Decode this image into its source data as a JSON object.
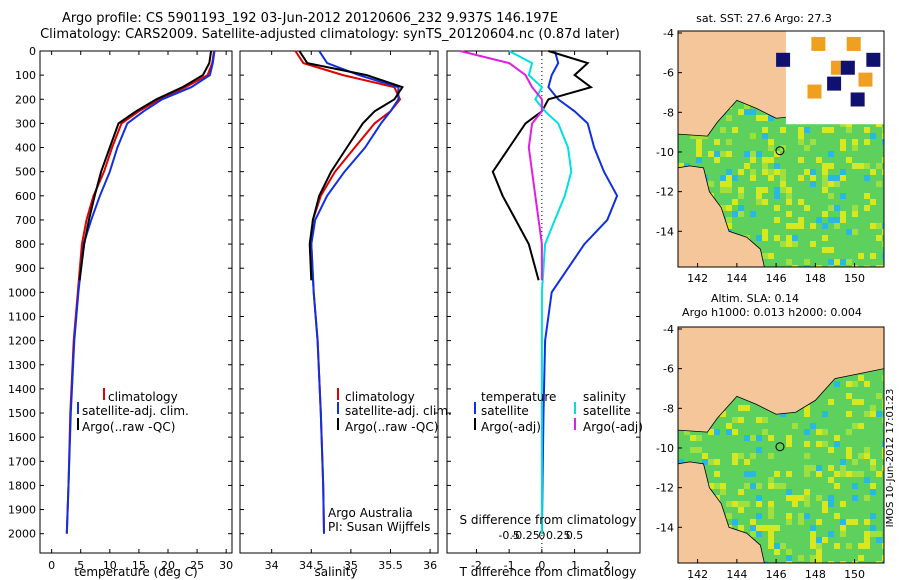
{
  "header": {
    "line1": "Argo profile: CS 5901193_192 03-Jun-2012 20120606_232 9.937S 146.197E",
    "line2": "Climatology: CARS2009. Satellite-adjusted climatology: synTS_20120604.nc (0.87d later)"
  },
  "colors": {
    "climatology": "#e00000",
    "satellite": "#1030e0",
    "argo": "#000000",
    "satellite_salinity": "#00e0e0",
    "argo_salinity": "#e020e0",
    "land": "#f5c69a",
    "sea_green": "#5ed05e",
    "sea_yellow": "#d8e820",
    "sea_cyan": "#28b8e0",
    "sea_orange": "#f0a020",
    "sea_navy": "#101070"
  },
  "chart_data": [
    {
      "type": "line",
      "title": "",
      "xlabel": "temperature (deg C)",
      "ylabel": "",
      "xlim": [
        -2,
        31
      ],
      "ylim": [
        2080,
        0
      ],
      "xticks": [
        "0",
        "5",
        "10",
        "15",
        "20",
        "25",
        "30"
      ],
      "xtick_values": [
        0,
        5,
        10,
        15,
        20,
        25,
        30
      ],
      "yticks": [
        "0",
        "100",
        "200",
        "300",
        "400",
        "500",
        "600",
        "700",
        "800",
        "900",
        "1000",
        "1100",
        "1200",
        "1300",
        "1400",
        "1500",
        "1600",
        "1700",
        "1800",
        "1900",
        "2000"
      ],
      "ytick_values": [
        0,
        100,
        200,
        300,
        400,
        500,
        600,
        700,
        800,
        900,
        1000,
        1100,
        1200,
        1300,
        1400,
        1500,
        1600,
        1700,
        1800,
        1900,
        2000
      ],
      "series": [
        {
          "name": "climatology",
          "color": "#e00000",
          "x": [
            27.9,
            27.6,
            26.8,
            23.0,
            18.5,
            15.0,
            12.0,
            10.4,
            9.0,
            7.2,
            6.0,
            5.2,
            4.5,
            3.8,
            3.2,
            2.9,
            2.6
          ],
          "y": [
            0,
            50,
            100,
            150,
            200,
            250,
            300,
            400,
            500,
            600,
            700,
            800,
            1000,
            1200,
            1500,
            1800,
            2000
          ]
        },
        {
          "name": "satellite-adj. clim.",
          "color": "#1030e0",
          "x": [
            28.0,
            27.7,
            27.2,
            24.0,
            19.0,
            15.8,
            13.0,
            11.3,
            10.0,
            8.3,
            6.8,
            5.5,
            4.6,
            3.9,
            3.3,
            2.9,
            2.6
          ],
          "y": [
            0,
            50,
            100,
            150,
            200,
            250,
            300,
            400,
            500,
            600,
            700,
            800,
            1000,
            1200,
            1500,
            1800,
            2000
          ]
        },
        {
          "name": "Argo(..raw -QC)",
          "color": "#000000",
          "x": [
            27.4,
            27.1,
            26.0,
            22.5,
            18.0,
            14.5,
            11.5,
            10.0,
            8.5,
            7.4,
            6.4,
            5.6,
            4.8
          ],
          "y": [
            0,
            50,
            100,
            150,
            200,
            250,
            300,
            400,
            500,
            600,
            700,
            800,
            950
          ]
        }
      ],
      "legend": [
        "climatology",
        "satellite-adj. clim.",
        "Argo(..raw -QC)"
      ]
    },
    {
      "type": "line",
      "xlabel": "salinity",
      "xlim": [
        33.6,
        36.1
      ],
      "ylim": [
        2080,
        0
      ],
      "xticks": [
        "34",
        "34.5",
        "35",
        "35.5",
        "36"
      ],
      "xtick_values": [
        34,
        34.5,
        35,
        35.5,
        36
      ],
      "series": [
        {
          "name": "climatology",
          "color": "#e00000",
          "x": [
            34.3,
            34.4,
            34.9,
            35.55,
            35.62,
            35.5,
            35.3,
            35.05,
            34.8,
            34.62,
            34.52,
            34.5,
            34.53,
            34.58,
            34.62,
            34.65,
            34.66
          ],
          "y": [
            0,
            50,
            100,
            150,
            200,
            250,
            300,
            400,
            500,
            600,
            700,
            800,
            1000,
            1200,
            1500,
            1800,
            2000
          ]
        },
        {
          "name": "satellite-adj. clim.",
          "color": "#1030e0",
          "x": [
            34.6,
            34.7,
            35.1,
            35.6,
            35.6,
            35.5,
            35.38,
            35.18,
            34.92,
            34.7,
            34.55,
            34.5,
            34.53,
            34.58,
            34.62,
            34.65,
            34.66
          ],
          "y": [
            0,
            50,
            100,
            150,
            200,
            250,
            300,
            400,
            500,
            600,
            700,
            800,
            1000,
            1200,
            1500,
            1800,
            2000
          ]
        },
        {
          "name": "Argo(..raw -QC)",
          "color": "#000000",
          "x": [
            34.35,
            34.45,
            35.2,
            35.65,
            35.55,
            35.3,
            35.15,
            34.95,
            34.75,
            34.6,
            34.52,
            34.48,
            34.5
          ],
          "y": [
            0,
            50,
            100,
            150,
            200,
            250,
            300,
            400,
            500,
            600,
            700,
            800,
            950
          ]
        }
      ],
      "legend": [
        "climatology",
        "satellite-adj. clim.",
        "Argo(..raw -QC)"
      ],
      "annotation": [
        "Argo Australia",
        "PI: Susan Wijffels"
      ]
    },
    {
      "type": "line",
      "xlabel": "T difference from climatology",
      "xlabel_top": "S difference from climatology",
      "xlim": [
        -2.9,
        3.0
      ],
      "ylim": [
        2080,
        0
      ],
      "xticks": [
        "-2",
        "-1",
        "0",
        "1",
        "2"
      ],
      "xtick_values": [
        -2,
        -1,
        0,
        1,
        2
      ],
      "xticks_top": [
        "-0.5",
        "-0.25",
        "0",
        "0.25",
        "0.5"
      ],
      "series": [
        {
          "name": "temperature satellite",
          "color": "#1030e0",
          "x": [
            0.4,
            0.5,
            0.3,
            0.2,
            0.5,
            1.0,
            1.4,
            1.6,
            1.9,
            2.3,
            2.0,
            1.3,
            0.3,
            0.1,
            0.05,
            0.02,
            0.0
          ],
          "y": [
            0,
            50,
            100,
            150,
            200,
            250,
            300,
            400,
            500,
            600,
            700,
            800,
            1000,
            1200,
            1500,
            1800,
            2000
          ]
        },
        {
          "name": "temperature Argo(-adj)",
          "color": "#000000",
          "x": [
            0.2,
            1.4,
            1.0,
            1.5,
            0.2,
            0.0,
            -0.5,
            -1.0,
            -1.5,
            -1.2,
            -0.8,
            -0.4,
            -0.1
          ],
          "y": [
            0,
            50,
            100,
            150,
            200,
            250,
            300,
            400,
            500,
            600,
            700,
            800,
            950
          ]
        },
        {
          "name": "salinity satellite",
          "color": "#00e0e0",
          "x": [
            -1.0,
            -0.3,
            -0.4,
            0.0,
            -0.2,
            0.1,
            0.5,
            0.8,
            0.9,
            0.7,
            0.4,
            0.1,
            0.0,
            0.0,
            0.0,
            0.0,
            0.0
          ],
          "y": [
            0,
            50,
            100,
            150,
            200,
            250,
            300,
            400,
            500,
            600,
            700,
            800,
            1000,
            1200,
            1500,
            1800,
            2000
          ]
        },
        {
          "name": "salinity Argo(-adj)",
          "color": "#e020e0",
          "x": [
            -2.5,
            -1.0,
            -0.5,
            -0.3,
            0.0,
            0.0,
            -0.3,
            -0.4,
            -0.3,
            -0.2,
            -0.1,
            0.0,
            0.0
          ],
          "y": [
            0,
            50,
            100,
            150,
            200,
            250,
            300,
            400,
            500,
            600,
            700,
            800,
            950
          ]
        }
      ],
      "legend_temperature_title": "temperature",
      "legend_salinity_title": "salinity",
      "legend": [
        "satellite",
        "Argo(-adj)",
        "satellite",
        "Argo(-adj)"
      ]
    },
    {
      "type": "heatmap",
      "title": "sat. SST: 27.6 Argo: 27.3",
      "xticks": [
        "142",
        "144",
        "146",
        "148",
        "150"
      ],
      "xtick_values": [
        142,
        144,
        146,
        148,
        150
      ],
      "yticks": [
        "-4",
        "-6",
        "-8",
        "-10",
        "-12",
        "-14"
      ],
      "ytick_values": [
        -4,
        -6,
        -8,
        -10,
        -12,
        -14
      ],
      "xlim": [
        141,
        151.5
      ],
      "ylim": [
        -15.8,
        -3.9
      ],
      "float_position": [
        146.197,
        -9.937
      ]
    },
    {
      "type": "heatmap",
      "title_line1": "Altim. SLA: 0.14",
      "title_line2": "Argo h1000: 0.013 h2000: 0.004",
      "xticks": [
        "142",
        "144",
        "146",
        "148",
        "150"
      ],
      "xtick_values": [
        142,
        144,
        146,
        148,
        150
      ],
      "yticks": [
        "-4",
        "-6",
        "-8",
        "-10",
        "-12",
        "-14"
      ],
      "ytick_values": [
        -4,
        -6,
        -8,
        -10,
        -12,
        -14
      ],
      "xlim": [
        141,
        151.5
      ],
      "ylim": [
        -15.8,
        -3.9
      ],
      "float_position": [
        146.197,
        -9.937
      ]
    }
  ],
  "footer": {
    "timestamp": "IMOS 10-Jun-2012 17:01:23"
  }
}
